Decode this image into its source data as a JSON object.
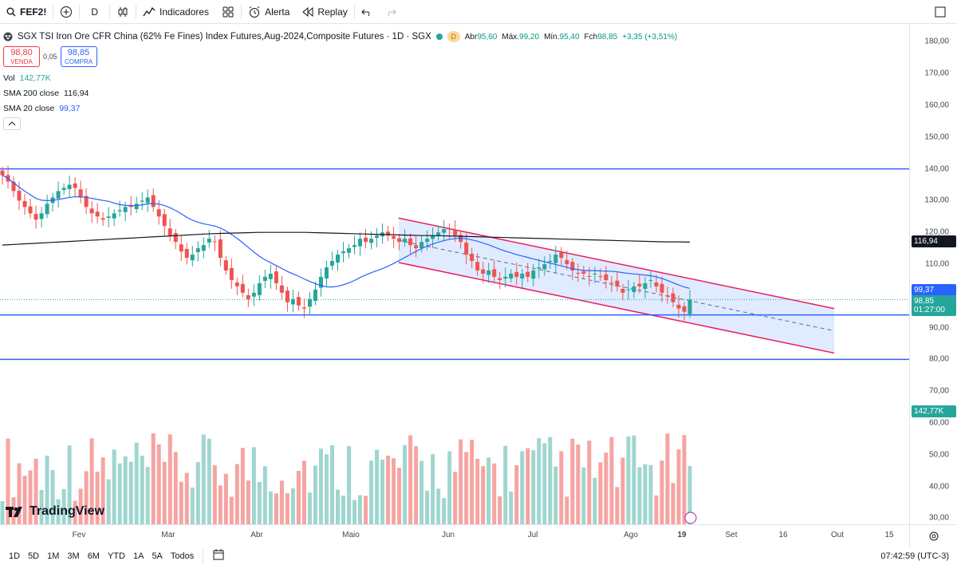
{
  "toolbar": {
    "symbol": "FEF2!",
    "interval": "D",
    "indicators_label": "Indicadores",
    "alert_label": "Alerta",
    "replay_label": "Replay"
  },
  "legend": {
    "title": "SGX TSI Iron Ore CFR China (62% Fe Fines) Index Futures,Aug-2024,Composite Futures · 1D · SGX",
    "badge": "D",
    "open_label": "Abr",
    "open": "95,60",
    "high_label": "Máx.",
    "high": "99,20",
    "low_label": "Mín.",
    "low": "95,40",
    "close_label": "Fch",
    "close": "98,85",
    "change": "+3,35 (+3,51%)",
    "sell_price": "98,80",
    "sell_label": "VENDA",
    "spread": "0,05",
    "buy_price": "98,85",
    "buy_label": "COMPRA",
    "vol_label": "Vol",
    "vol_value": "142,77K",
    "sma200_label": "SMA 200 close",
    "sma200_value": "116,94",
    "sma20_label": "SMA 20 close",
    "sma20_value": "99,37"
  },
  "price_axis": {
    "ticks": [
      "180,00",
      "170,00",
      "160,00",
      "150,00",
      "140,00",
      "130,00",
      "120,00",
      "110,00",
      "100,00",
      "90,00",
      "80,00",
      "70,00",
      "60,00",
      "50,00",
      "40,00",
      "30,00"
    ],
    "sma200_label": "116,94",
    "sma20_label": "99,37",
    "last_price_label": "98,85",
    "countdown": "01:27:00",
    "volume_label": "142,77K"
  },
  "time_axis": {
    "ticks": [
      "Fev",
      "Mar",
      "Abr",
      "Maio",
      "Jun",
      "Jul",
      "Ago",
      "19",
      "Set",
      "16",
      "Out",
      "15"
    ]
  },
  "chart_data": {
    "type": "candlestick",
    "price_range": [
      25,
      185
    ],
    "horizontal_levels": [
      140,
      94,
      80
    ],
    "channel": {
      "upper": [
        [
          "2024-05-10",
          124.5
        ],
        [
          "2024-09-30",
          96
        ]
      ],
      "lower": [
        [
          "2024-05-10",
          110.5
        ],
        [
          "2024-09-30",
          82
        ]
      ],
      "mid": [
        [
          "2024-05-10",
          117.5
        ],
        [
          "2024-09-30",
          89
        ]
      ]
    },
    "closes": [
      138,
      136,
      133,
      130,
      128,
      126,
      124,
      126,
      129,
      131,
      133,
      134,
      135,
      134,
      131,
      128,
      126,
      125,
      124,
      125,
      126,
      127,
      128,
      128,
      129,
      130,
      131,
      128,
      125,
      122,
      119,
      117,
      114,
      112,
      113,
      115,
      116,
      118,
      117,
      112,
      108,
      105,
      103,
      101,
      99,
      101,
      104,
      106,
      107,
      104,
      101,
      98,
      99,
      97,
      96,
      99,
      102,
      106,
      109,
      111,
      113,
      114,
      115,
      116,
      118,
      117,
      118,
      119,
      120,
      119,
      118,
      117,
      118,
      116,
      115,
      117,
      118,
      119,
      120,
      121,
      121,
      119,
      117,
      113,
      111,
      108,
      107,
      108,
      106,
      105,
      106,
      107,
      106,
      107,
      106,
      108,
      109,
      110,
      111,
      113,
      112,
      110,
      108,
      107,
      107,
      106,
      107,
      106,
      105,
      104,
      103,
      101,
      102,
      103,
      103,
      104,
      105,
      103,
      101,
      100,
      98,
      96,
      95,
      98.85
    ],
    "sma200": [
      116,
      116.2,
      116.4,
      116.6,
      116.8,
      117,
      117.2,
      117.4,
      117.6,
      117.8,
      118,
      118.2,
      118.4,
      118.6,
      118.8,
      119,
      119.2,
      119.4,
      119.6,
      119.7,
      119.8,
      119.9,
      120,
      120,
      120,
      120,
      120,
      119.9,
      119.8,
      119.7,
      119.6,
      119.5,
      119.4,
      119.3,
      119.2,
      119.1,
      119,
      119,
      118.9,
      118.8,
      118.7,
      118.6,
      118.5,
      118.4,
      118.3,
      118.2,
      118.1,
      118,
      117.9,
      117.8,
      117.7,
      117.6,
      117.5,
      117.4,
      117.3,
      117.2,
      117.1,
      117,
      117,
      116.94
    ],
    "volume": {
      "last": "142,77K",
      "ylim": [
        0,
        70
      ]
    }
  },
  "bottombar": {
    "ranges": [
      "1D",
      "5D",
      "1M",
      "3M",
      "6M",
      "YTD",
      "1A",
      "5A",
      "Todos"
    ],
    "clock": "07:42:59 (UTC-3)"
  },
  "watermark": "TradingView",
  "colors": {
    "up": "#26a69a",
    "down": "#ef5350",
    "level": "#2962ff",
    "channel": "#e91e63",
    "channel_fill": "#d6e4ff",
    "sma20": "#2962ff",
    "sma200": "#131722"
  }
}
